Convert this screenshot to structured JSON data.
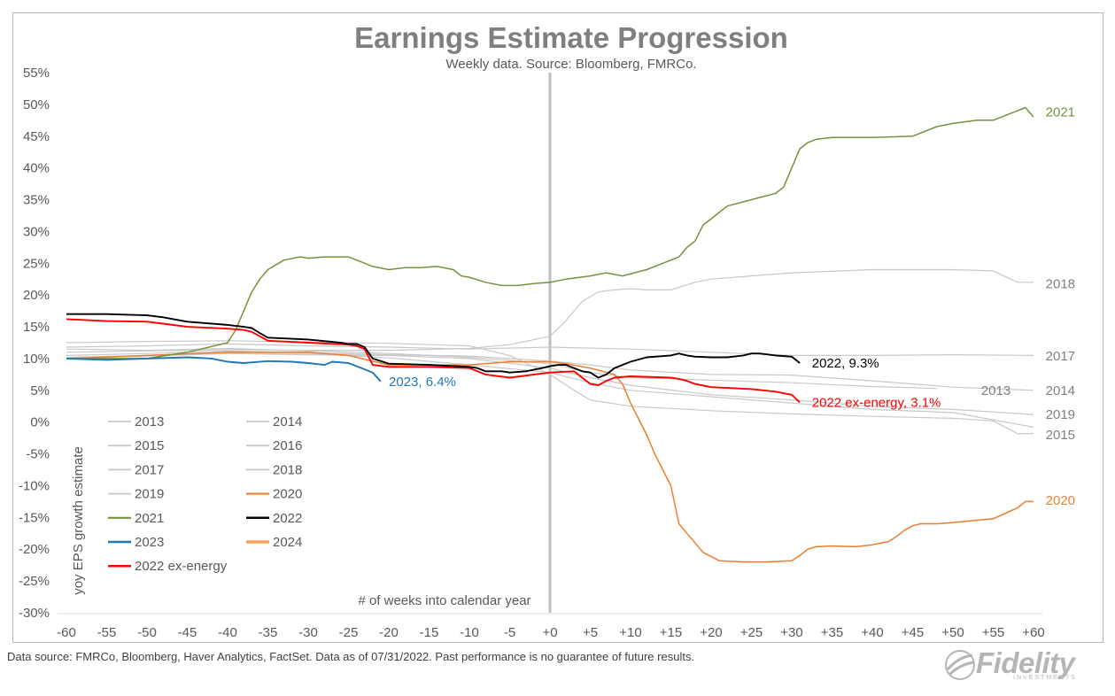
{
  "chart_data": {
    "type": "line",
    "title": "Earnings Estimate Progression",
    "subtitle": "Weekly data.  Source: Bloomberg, FMRCo.",
    "xlabel": "# of weeks into calendar year",
    "ylabel": "yoy EPS growth estimate",
    "xlim": [
      -60,
      60
    ],
    "ylim": [
      -30,
      55
    ],
    "x_ticks": [
      -60,
      -55,
      -50,
      -45,
      -40,
      -35,
      -30,
      -25,
      -20,
      -15,
      -10,
      -5,
      0,
      5,
      10,
      15,
      20,
      25,
      30,
      35,
      40,
      45,
      50,
      55,
      60
    ],
    "x_tick_labels": [
      "-60",
      "-55",
      "-50",
      "-45",
      "-40",
      "-35",
      "-30",
      "-25",
      "-20",
      "-15",
      "-10",
      "-5",
      "+0",
      "+5",
      "+10",
      "+15",
      "+20",
      "+25",
      "+30",
      "+35",
      "+40",
      "+45",
      "+50",
      "+55",
      "+60"
    ],
    "y_ticks": [
      -30,
      -25,
      -20,
      -15,
      -10,
      -5,
      0,
      5,
      10,
      15,
      20,
      25,
      30,
      35,
      40,
      45,
      50,
      55
    ],
    "y_tick_labels": [
      "-30%",
      "-25%",
      "-20%",
      "-15%",
      "-10%",
      "-5%",
      "0%",
      "5%",
      "10%",
      "15%",
      "20%",
      "25%",
      "30%",
      "35%",
      "40%",
      "45%",
      "50%",
      "55%"
    ],
    "grid": false,
    "vline_x": 0,
    "legend_position": "lower-left",
    "series": [
      {
        "name": "2013",
        "color": "#c8c8c8",
        "width": 1.2,
        "x": [
          -60,
          -50,
          -40,
          -30,
          -20,
          -10,
          0,
          5,
          10,
          20,
          30,
          40,
          48
        ],
        "y": [
          11.5,
          11.3,
          11.6,
          11.2,
          10.8,
          10.2,
          9.2,
          7.8,
          7.0,
          6.6,
          6.2,
          5.6,
          5.3
        ]
      },
      {
        "name": "2014",
        "color": "#c8c8c8",
        "width": 1.2,
        "x": [
          -60,
          -50,
          -40,
          -30,
          -20,
          -10,
          0,
          5,
          10,
          20,
          30,
          40,
          50,
          60
        ],
        "y": [
          10.5,
          10.8,
          11.2,
          10.9,
          10.6,
          10.4,
          9.6,
          9.0,
          8.2,
          7.5,
          7.4,
          6.5,
          5.5,
          5.0
        ]
      },
      {
        "name": "2015",
        "color": "#c8c8c8",
        "width": 1.2,
        "x": [
          -60,
          -50,
          -40,
          -30,
          -20,
          -10,
          -5,
          0,
          3,
          5,
          10,
          20,
          30,
          40,
          50,
          55,
          58,
          60
        ],
        "y": [
          12.5,
          12.7,
          12.8,
          12.6,
          12.4,
          12.0,
          10.5,
          7.5,
          5.0,
          3.5,
          2.5,
          1.8,
          1.3,
          0.9,
          0.6,
          0.2,
          -1.8,
          -1.8
        ]
      },
      {
        "name": "2016",
        "color": "#c8c8c8",
        "width": 1.2,
        "x": [
          -60,
          -50,
          -40,
          -30,
          -20,
          -10,
          0,
          5,
          10,
          20,
          30,
          40,
          50,
          60
        ],
        "y": [
          10.0,
          10.4,
          10.8,
          10.8,
          10.1,
          9.0,
          7.8,
          6.2,
          5.0,
          4.0,
          3.0,
          2.0,
          1.5,
          -0.8
        ]
      },
      {
        "name": "2017",
        "color": "#c8c8c8",
        "width": 1.2,
        "x": [
          -60,
          -50,
          -40,
          -30,
          -20,
          -10,
          0,
          10,
          20,
          30,
          40,
          50,
          60
        ],
        "y": [
          11.8,
          12.0,
          12.3,
          12.0,
          11.8,
          11.5,
          11.8,
          11.5,
          11.0,
          10.5,
          10.5,
          10.6,
          10.5
        ]
      },
      {
        "name": "2018",
        "color": "#c8c8c8",
        "width": 1.2,
        "x": [
          -60,
          -50,
          -40,
          -30,
          -20,
          -10,
          -5,
          0,
          2,
          4,
          6,
          8,
          10,
          12,
          15,
          18,
          20,
          25,
          30,
          40,
          50,
          55,
          58,
          60
        ],
        "y": [
          11.0,
          11.2,
          11.4,
          11.3,
          11.3,
          11.6,
          12.2,
          13.5,
          16.0,
          19.0,
          20.5,
          20.8,
          21.0,
          20.8,
          20.8,
          22.0,
          22.5,
          23.0,
          23.5,
          24.0,
          24.0,
          23.8,
          22.0,
          22.0
        ]
      },
      {
        "name": "2019",
        "color": "#c8c8c8",
        "width": 1.2,
        "x": [
          -60,
          -50,
          -40,
          -30,
          -20,
          -10,
          0,
          5,
          10,
          20,
          30,
          40,
          50,
          60
        ],
        "y": [
          10.2,
          10.5,
          10.8,
          10.6,
          10.5,
          10.0,
          8.5,
          7.0,
          5.8,
          4.3,
          3.5,
          2.5,
          2.0,
          1.2
        ]
      },
      {
        "name": "2020",
        "color": "#ed7d31",
        "width": 1.5,
        "x": [
          -60,
          -50,
          -40,
          -30,
          -25,
          -20,
          -10,
          -5,
          0,
          2,
          5,
          8,
          9,
          10,
          12,
          13,
          15,
          16,
          17,
          19,
          21,
          24,
          27,
          30,
          31,
          32,
          33,
          35,
          38,
          40,
          42,
          43,
          44,
          45,
          46,
          48,
          50,
          55,
          58,
          59,
          60
        ],
        "y": [
          10.0,
          10.5,
          11.0,
          11.0,
          10.5,
          9.0,
          9.0,
          9.5,
          9.5,
          9.2,
          8.5,
          7.5,
          6.0,
          3.0,
          -2.0,
          -5.0,
          -10.0,
          -16.0,
          -17.5,
          -20.5,
          -21.8,
          -22.0,
          -22.0,
          -21.8,
          -21.0,
          -20.0,
          -19.6,
          -19.5,
          -19.6,
          -19.3,
          -18.8,
          -18.0,
          -17.0,
          -16.3,
          -16.0,
          -16.0,
          -15.8,
          -15.2,
          -13.5,
          -12.5,
          -12.5
        ]
      },
      {
        "name": "2021",
        "color": "#76923c",
        "width": 1.5,
        "x": [
          -60,
          -50,
          -45,
          -40,
          -39,
          -38,
          -37,
          -36,
          -35,
          -33,
          -31,
          -30,
          -28,
          -25,
          -24,
          -22,
          -20,
          -18,
          -16,
          -14,
          -12,
          -11,
          -10,
          -8,
          -6,
          -4,
          -2,
          0,
          2,
          5,
          7,
          9,
          12,
          14,
          16,
          17,
          18,
          19,
          20,
          21,
          22,
          25,
          28,
          29,
          30,
          31,
          32,
          33,
          35,
          40,
          45,
          48,
          50,
          53,
          55,
          58,
          59,
          60
        ],
        "y": [
          10.0,
          10.0,
          11.0,
          12.5,
          14.5,
          17.5,
          20.5,
          22.5,
          24.0,
          25.5,
          26.0,
          25.8,
          26.0,
          26.0,
          25.5,
          24.5,
          24.0,
          24.3,
          24.3,
          24.5,
          24.0,
          23.0,
          22.8,
          22.0,
          21.5,
          21.5,
          21.8,
          22.0,
          22.5,
          23.0,
          23.5,
          23.0,
          24.0,
          25.0,
          26.0,
          27.5,
          28.5,
          31.0,
          32.0,
          33.0,
          34.0,
          35.0,
          36.0,
          37.0,
          40.0,
          43.0,
          44.0,
          44.5,
          44.8,
          44.8,
          45.0,
          46.5,
          47.0,
          47.5,
          47.5,
          49.0,
          49.5,
          48.0
        ]
      },
      {
        "name": "2022",
        "color": "#000000",
        "width": 1.9,
        "x": [
          -60,
          -55,
          -50,
          -48,
          -45,
          -40,
          -38,
          -37,
          -36,
          -35,
          -30,
          -26,
          -25,
          -24,
          -23,
          -22,
          -20,
          -15,
          -10,
          -9,
          -8,
          -6,
          -5,
          -3,
          -1,
          0,
          1,
          2,
          3,
          4,
          5,
          6,
          7,
          8,
          10,
          12,
          15,
          16,
          17,
          18,
          20,
          22,
          24,
          25,
          26,
          28,
          30,
          31
        ],
        "y": [
          17.0,
          17.0,
          16.8,
          16.5,
          15.8,
          15.3,
          15.0,
          14.8,
          14.0,
          13.3,
          13.0,
          12.5,
          12.3,
          12.3,
          11.8,
          10.0,
          9.2,
          9.0,
          8.7,
          8.5,
          8.0,
          8.0,
          7.8,
          8.0,
          8.5,
          8.8,
          9.0,
          9.0,
          8.5,
          8.0,
          7.8,
          7.0,
          7.5,
          8.5,
          9.5,
          10.2,
          10.5,
          10.8,
          10.5,
          10.3,
          10.2,
          10.2,
          10.5,
          10.8,
          10.8,
          10.5,
          10.3,
          9.3
        ]
      },
      {
        "name": "2023",
        "color": "#1f77b4",
        "width": 1.9,
        "x": [
          -60,
          -55,
          -50,
          -45,
          -42,
          -40,
          -38,
          -35,
          -32,
          -30,
          -28,
          -27,
          -25,
          -23,
          -22,
          -21
        ],
        "y": [
          10.0,
          9.8,
          10.0,
          10.2,
          10.0,
          9.5,
          9.3,
          9.6,
          9.5,
          9.3,
          9.0,
          9.5,
          9.3,
          8.3,
          7.8,
          6.4
        ]
      },
      {
        "name": "2024",
        "color": "#f5a25d",
        "width": 3.0,
        "x": [],
        "y": []
      },
      {
        "name": "2022 ex-energy",
        "color": "#ff0000",
        "width": 1.9,
        "x": [
          -60,
          -55,
          -50,
          -48,
          -45,
          -40,
          -38,
          -37,
          -36,
          -35,
          -30,
          -25,
          -24,
          -23,
          -22,
          -20,
          -15,
          -10,
          -9,
          -8,
          -5,
          0,
          3,
          4,
          5,
          6,
          7,
          8,
          10,
          15,
          16,
          17,
          18,
          20,
          25,
          28,
          30,
          31
        ],
        "y": [
          16.2,
          15.9,
          15.8,
          15.5,
          15.0,
          14.7,
          14.5,
          14.2,
          13.5,
          12.8,
          12.5,
          12.2,
          12.0,
          11.5,
          9.0,
          8.7,
          8.7,
          8.5,
          8.0,
          7.5,
          7.0,
          7.8,
          8.0,
          7.0,
          6.0,
          5.8,
          6.5,
          7.0,
          7.2,
          7.0,
          6.8,
          6.5,
          6.0,
          5.5,
          5.2,
          4.8,
          4.3,
          3.1
        ]
      }
    ],
    "end_labels": [
      {
        "text": "2021",
        "x": 61.5,
        "y": 48.8,
        "color": "#76923c"
      },
      {
        "text": "2018",
        "x": 61.5,
        "y": 21.8,
        "color": "#7f7f7f"
      },
      {
        "text": "2017",
        "x": 61.5,
        "y": 10.4,
        "color": "#7f7f7f"
      },
      {
        "text": "2013",
        "x": 53.5,
        "y": 5.0,
        "color": "#7f7f7f"
      },
      {
        "text": "2014",
        "x": 61.5,
        "y": 5.0,
        "color": "#7f7f7f"
      },
      {
        "text": "2019",
        "x": 61.5,
        "y": 1.2,
        "color": "#7f7f7f"
      },
      {
        "text": "2015",
        "x": 61.5,
        "y": -2.0,
        "color": "#7f7f7f"
      },
      {
        "text": "2020",
        "x": 61.5,
        "y": -12.3,
        "color": "#ed7d31"
      },
      {
        "text": "2022, 9.3%",
        "x": 32.5,
        "y": 9.3,
        "color": "#000000"
      },
      {
        "text": "2022 ex-energy, 3.1%",
        "x": 32.5,
        "y": 3.1,
        "color": "#ff0000"
      },
      {
        "text": "2023, 6.4%",
        "x": -20,
        "y": 6.4,
        "color": "#1f77b4"
      }
    ]
  },
  "footnote": "Data source: FMRCo, Bloomberg, Haver Analytics, FactSet. Data as of 07/31/2022. Past performance is no guarantee of future results.",
  "logo": {
    "text": "Fidelity",
    "subtext": "INVESTMENTS"
  }
}
